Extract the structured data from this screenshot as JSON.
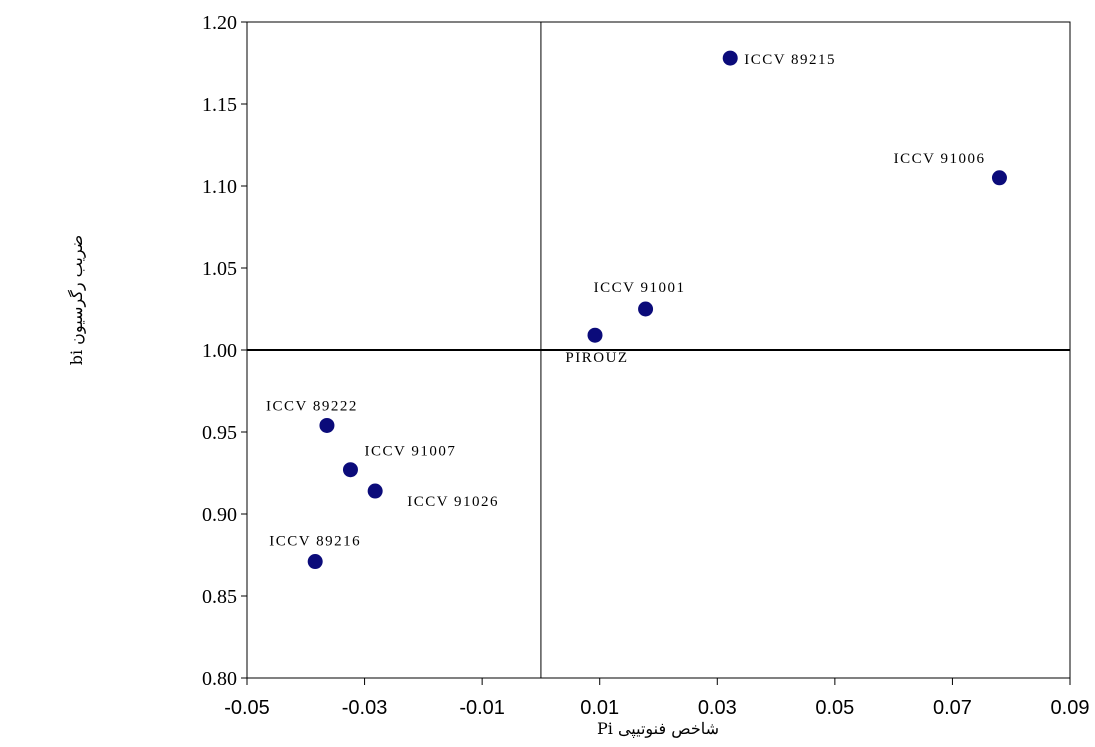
{
  "chart_data": {
    "type": "scatter",
    "xlabel": "شاخص فنوتیپی Pi",
    "ylabel": "ضریب رگرسیون bi",
    "xlim": [
      -0.05,
      0.09
    ],
    "ylim": [
      0.8,
      1.2
    ],
    "x_ticks": [
      "-0.05",
      "-0.03",
      "-0.01",
      "0.01",
      "0.03",
      "0.05",
      "0.07",
      "0.09"
    ],
    "y_ticks": [
      "0.80",
      "0.85",
      "0.90",
      "0.95",
      "1.00",
      "1.05",
      "1.10",
      "1.15",
      "1.20"
    ],
    "reference_lines": {
      "x": 0.0,
      "y": 1.0
    },
    "grid": false,
    "marker_color": "#0b0b7a",
    "points": [
      {
        "label": "ICCV 89215",
        "x": 0.0322,
        "y": 1.178
      },
      {
        "label": "ICCV 91006",
        "x": 0.078,
        "y": 1.105
      },
      {
        "label": "ICCV 91001",
        "x": 0.0178,
        "y": 1.025
      },
      {
        "label": "PIROUZ",
        "x": 0.0092,
        "y": 1.009
      },
      {
        "label": "ICCV 89222",
        "x": -0.0364,
        "y": 0.954
      },
      {
        "label": "ICCV 91007",
        "x": -0.0324,
        "y": 0.927
      },
      {
        "label": "ICCV 91026",
        "x": -0.0282,
        "y": 0.914
      },
      {
        "label": "ICCV 89216",
        "x": -0.0384,
        "y": 0.871
      }
    ]
  }
}
